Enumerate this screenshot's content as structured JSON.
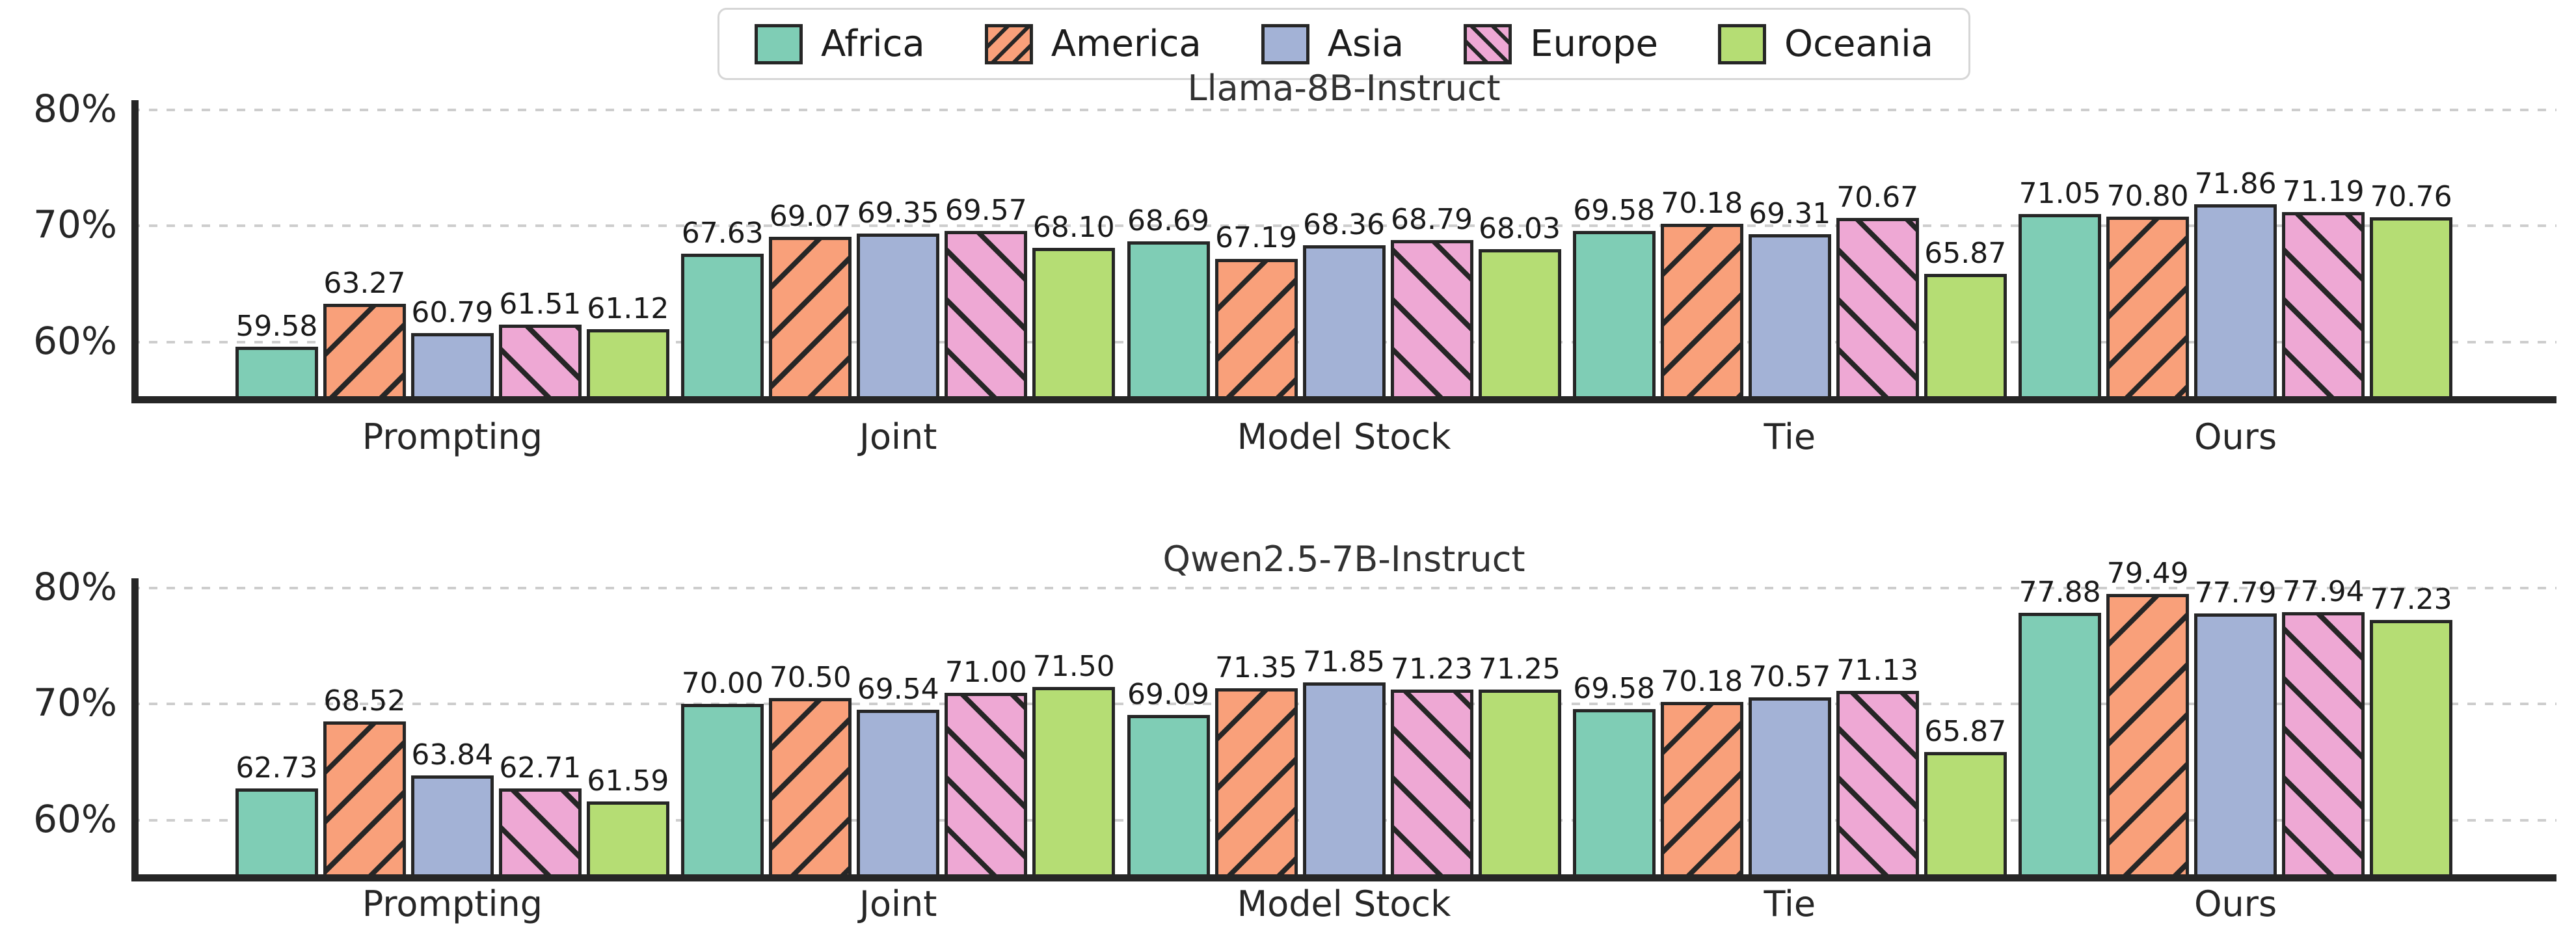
{
  "figure": {
    "background": "#ffffff"
  },
  "colors": {
    "edge": "#262626",
    "grid": "#cdcdcd",
    "text": "#262626",
    "title": "#323232",
    "legend_border": "#d6d6d6",
    "africa": "#7fcdb5",
    "america": "#f9a07a",
    "asia": "#a3b2d6",
    "europe": "#eea8d4",
    "oceania": "#b5dd74"
  },
  "legend": {
    "items": [
      {
        "label": "Africa",
        "color": "#7fcdb5",
        "hatch": "none"
      },
      {
        "label": "America",
        "color": "#f9a07a",
        "hatch": "/"
      },
      {
        "label": "Asia",
        "color": "#a3b2d6",
        "hatch": "none"
      },
      {
        "label": "Europe",
        "color": "#eea8d4",
        "hatch": "\\"
      },
      {
        "label": "Oceania",
        "color": "#b5dd74",
        "hatch": "none"
      }
    ]
  },
  "chart_data": [
    {
      "type": "bar",
      "title": "Llama-8B-Instruct",
      "categories": [
        "Prompting",
        "Joint",
        "Model Stock",
        "Tie",
        "Ours"
      ],
      "series": [
        {
          "name": "Africa",
          "color": "#7fcdb5",
          "hatch": "none",
          "values": [
            59.58,
            67.63,
            68.69,
            69.58,
            71.05
          ]
        },
        {
          "name": "America",
          "color": "#f9a07a",
          "hatch": "/",
          "values": [
            63.27,
            69.07,
            67.19,
            70.18,
            70.8
          ]
        },
        {
          "name": "Asia",
          "color": "#a3b2d6",
          "hatch": "none",
          "values": [
            60.79,
            69.35,
            68.36,
            69.31,
            71.86
          ]
        },
        {
          "name": "Europe",
          "color": "#eea8d4",
          "hatch": "\\",
          "values": [
            61.51,
            69.57,
            68.79,
            70.67,
            71.19
          ]
        },
        {
          "name": "Oceania",
          "color": "#b5dd74",
          "hatch": "none",
          "values": [
            61.12,
            68.1,
            68.03,
            65.87,
            70.76
          ]
        }
      ],
      "yticks": [
        {
          "value": 60,
          "label": "60%"
        },
        {
          "value": 70,
          "label": "70%"
        },
        {
          "value": 80,
          "label": "80%"
        }
      ],
      "ylim": [
        55,
        80.5
      ],
      "grid": true,
      "value_label_decimals": 2,
      "legend_position": "top-center"
    },
    {
      "type": "bar",
      "title": "Qwen2.5-7B-Instruct",
      "categories": [
        "Prompting",
        "Joint",
        "Model Stock",
        "Tie",
        "Ours"
      ],
      "series": [
        {
          "name": "Africa",
          "color": "#7fcdb5",
          "hatch": "none",
          "values": [
            62.73,
            70.0,
            69.09,
            69.58,
            77.88
          ]
        },
        {
          "name": "America",
          "color": "#f9a07a",
          "hatch": "/",
          "values": [
            68.52,
            70.5,
            71.35,
            70.18,
            79.49
          ]
        },
        {
          "name": "Asia",
          "color": "#a3b2d6",
          "hatch": "none",
          "values": [
            63.84,
            69.54,
            71.85,
            70.57,
            77.79
          ]
        },
        {
          "name": "Europe",
          "color": "#eea8d4",
          "hatch": "\\",
          "values": [
            62.71,
            71.0,
            71.23,
            71.13,
            77.94
          ]
        },
        {
          "name": "Oceania",
          "color": "#b5dd74",
          "hatch": "none",
          "values": [
            61.59,
            71.5,
            71.25,
            65.87,
            77.23
          ]
        }
      ],
      "yticks": [
        {
          "value": 60,
          "label": "60%"
        },
        {
          "value": 70,
          "label": "70%"
        },
        {
          "value": 80,
          "label": "80%"
        }
      ],
      "ylim": [
        55,
        80.5
      ],
      "grid": true,
      "value_label_decimals": 2,
      "legend_position": "top-center"
    }
  ]
}
